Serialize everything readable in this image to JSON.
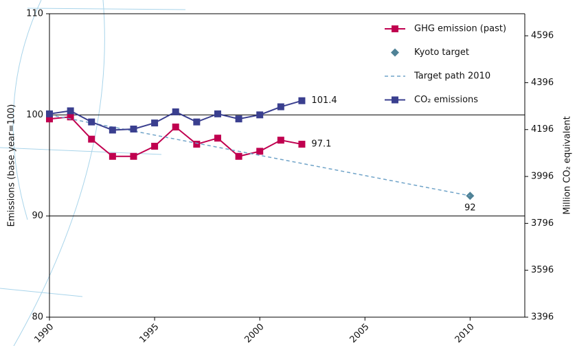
{
  "chart_data": {
    "type": "line",
    "ylabel": "Emissions (base year=100)",
    "y2label": "Million CO₂ equivalent",
    "xlim": [
      1990,
      2012.6
    ],
    "xticks": [
      1990,
      1995,
      2000,
      2005,
      2010
    ],
    "ylim": [
      80,
      110
    ],
    "yticks": [
      80,
      90,
      100,
      110
    ],
    "y2lim": [
      3396,
      4690
    ],
    "y2ticks": [
      3396,
      3596,
      3796,
      3996,
      4196,
      4396,
      4596
    ],
    "grid": true,
    "legend": "upper right",
    "series": [
      {
        "name": "GHG emission (past)",
        "color": "#c0004f",
        "marker": "square",
        "dash": false,
        "label_last": true,
        "x": [
          1990,
          1991,
          1992,
          1993,
          1994,
          1995,
          1996,
          1997,
          1998,
          1999,
          2000,
          2001,
          2002
        ],
        "values": [
          99.6,
          99.8,
          97.6,
          95.9,
          95.9,
          96.9,
          98.8,
          97.1,
          97.7,
          95.9,
          96.4,
          97.5,
          97.1
        ]
      },
      {
        "name": "Kyoto target",
        "color": "#4f8296",
        "marker": "diamond",
        "dash": false,
        "label_last": true,
        "x": [
          2010
        ],
        "values": [
          92
        ]
      },
      {
        "name": "Target path 2010",
        "color": "#6fa3c8",
        "marker": null,
        "dash": true,
        "label_last": false,
        "x": [
          1990,
          2010
        ],
        "values": [
          100,
          92
        ]
      },
      {
        "name": "CO₂ emissions",
        "color": "#3a3f8f",
        "marker": "square",
        "dash": false,
        "label_last": true,
        "x": [
          1990,
          1991,
          1992,
          1993,
          1994,
          1995,
          1996,
          1997,
          1998,
          1999,
          2000,
          2001,
          2002
        ],
        "values": [
          100.1,
          100.4,
          99.3,
          98.5,
          98.6,
          99.2,
          100.3,
          99.3,
          100.1,
          99.6,
          100.0,
          100.8,
          101.4
        ]
      }
    ]
  }
}
